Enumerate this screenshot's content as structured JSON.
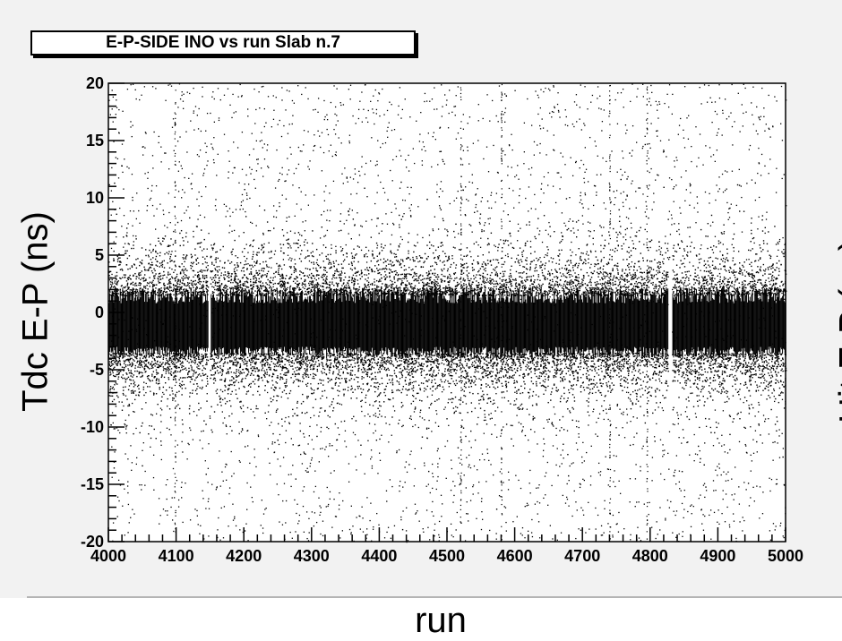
{
  "chart_data": {
    "type": "scatter",
    "title": "E-P-SIDE INO vs run Slab n.7",
    "xlabel": "run",
    "ylabel": "Tdc E-P (ns)",
    "xlim": [
      4000,
      5000
    ],
    "ylim": [
      -20,
      20
    ],
    "x_ticks": [
      "4000",
      "4100",
      "4200",
      "4300",
      "4400",
      "4500",
      "4600",
      "4700",
      "4800",
      "4900",
      "5000"
    ],
    "y_ticks": [
      "20",
      "15",
      "10",
      "5",
      "0",
      "-5",
      "-10",
      "-15",
      "-20"
    ],
    "grid": false,
    "legend": "none",
    "point_color": "#000000",
    "series": [
      {
        "band": {
          "center": -1.5,
          "core_low": -3.5,
          "core_high": 1.5,
          "tail_low": -20,
          "tail_high": 20
        },
        "gaps_x": [
          [
            4147,
            4150
          ],
          [
            4826,
            4832
          ]
        ],
        "sparse_columns_x": [
          4098,
          4520,
          4580,
          4740,
          4795
        ]
      }
    ]
  },
  "partial_label": "Hit E-P (ns)"
}
